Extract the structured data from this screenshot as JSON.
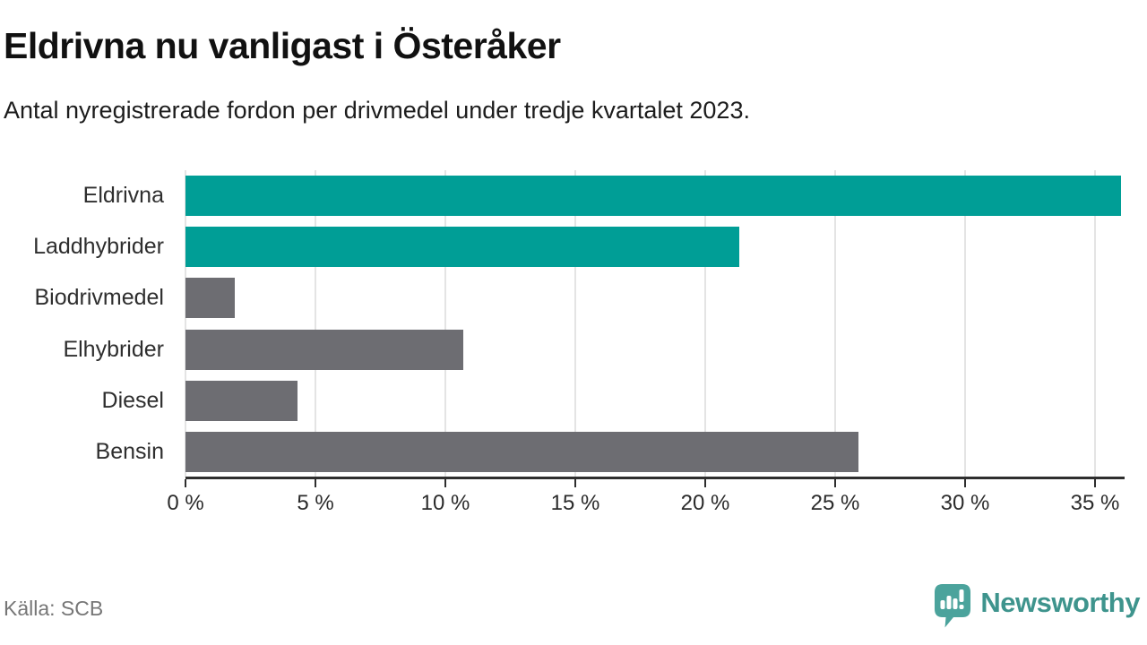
{
  "header": {
    "title": "Eldrivna nu vanligast i Österåker",
    "subtitle": "Antal nyregistrerade fordon per drivmedel under tredje kvartalet 2023."
  },
  "chart_data": {
    "type": "bar",
    "orientation": "horizontal",
    "title": "Eldrivna nu vanligast i Österåker",
    "subtitle": "Antal nyregistrerade fordon per drivmedel under tredje kvartalet 2023.",
    "categories": [
      "Eldrivna",
      "Laddhybrider",
      "Biodrivmedel",
      "Elhybrider",
      "Diesel",
      "Bensin"
    ],
    "values": [
      36.0,
      21.3,
      1.9,
      10.7,
      4.3,
      25.9
    ],
    "unit": "%",
    "colors": [
      "#009e96",
      "#009e96",
      "#6d6d72",
      "#6d6d72",
      "#6d6d72",
      "#6d6d72"
    ],
    "highlight_color": "#009e96",
    "default_color": "#6d6d72",
    "xlim": [
      0,
      36
    ],
    "x_ticks": [
      0,
      5,
      10,
      15,
      20,
      25,
      30,
      35
    ],
    "x_tick_labels": [
      "0 %",
      "5 %",
      "10 %",
      "15 %",
      "20 %",
      "25 %",
      "30 %",
      "35 %"
    ],
    "grid": "vertical",
    "legend": "none",
    "xlabel": "",
    "ylabel": ""
  },
  "footer": {
    "source": "Källa: SCB",
    "brand_name": "Newsworthy",
    "brand_color": "#3e948d",
    "badge_color": "#4ba39c"
  }
}
